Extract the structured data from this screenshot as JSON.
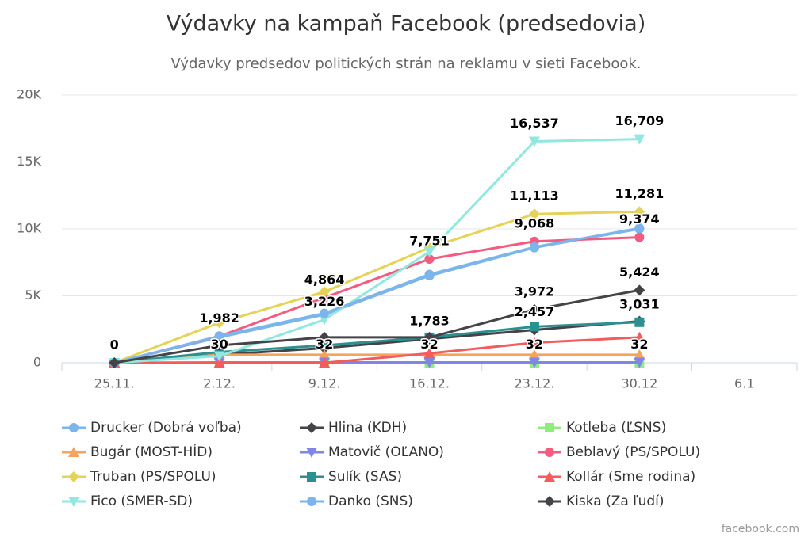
{
  "chart_data": {
    "type": "line",
    "title": "Výdavky na kampaň Facebook (predsedovia)",
    "subtitle": "Výdavky predsedov politických strán na reklamu v sieti Facebook.",
    "credits": "facebook.com",
    "categories": [
      "25.11.",
      "2.12.",
      "9.12.",
      "16.12.",
      "23.12.",
      "30.12",
      "6.1"
    ],
    "ylim": [
      0,
      20000
    ],
    "yticks": [
      {
        "value": 0,
        "label": "0"
      },
      {
        "value": 5000,
        "label": "5K"
      },
      {
        "value": 10000,
        "label": "10K"
      },
      {
        "value": 15000,
        "label": "15K"
      },
      {
        "value": 20000,
        "label": "20K"
      }
    ],
    "grid": true,
    "legend": "bottom",
    "series": [
      {
        "name": "Drucker (Dobrá voľba)",
        "color": "#7cb5ec",
        "marker": "circle",
        "values": [
          0,
          1900,
          3600,
          6500,
          8600,
          10000,
          null
        ]
      },
      {
        "name": "Hlina (KDH)",
        "color": "#434348",
        "marker": "diamond",
        "values": [
          0,
          600,
          1100,
          1783,
          2457,
          3100,
          null
        ],
        "value_labels": [
          null,
          null,
          null,
          "1,783",
          "2,457",
          null,
          null
        ]
      },
      {
        "name": "Kotleba (ĽSNS)",
        "color": "#90ed7d",
        "marker": "square",
        "values": [
          0,
          0,
          0,
          0,
          0,
          0,
          null
        ]
      },
      {
        "name": "Bugár (MOST-HÍD)",
        "color": "#f7a35c",
        "marker": "triangle",
        "values": [
          0,
          600,
          600,
          600,
          600,
          600,
          null
        ]
      },
      {
        "name": "Matovič (OĽANO)",
        "color": "#8085e9",
        "marker": "triangle-down",
        "values": [
          0,
          30,
          32,
          32,
          32,
          32,
          null
        ],
        "value_labels": [
          "0",
          "30",
          "32",
          "32",
          "32",
          "32",
          null
        ]
      },
      {
        "name": "Beblavý (PS/SPOLU)",
        "color": "#f15c80",
        "marker": "circle",
        "values": [
          0,
          1982,
          4864,
          7751,
          9068,
          9374,
          null
        ],
        "value_labels": [
          null,
          "1,982",
          "4,864",
          "7,751",
          "9,068",
          "9,374",
          null
        ]
      },
      {
        "name": "Truban (PS/SPOLU)",
        "color": "#e4d354",
        "marker": "diamond",
        "values": [
          0,
          3000,
          5300,
          8600,
          11113,
          11281,
          null
        ],
        "value_labels": [
          null,
          null,
          null,
          null,
          "11,113",
          "11,281",
          null
        ]
      },
      {
        "name": "Sulík (SAS)",
        "color": "#2b908f",
        "marker": "square",
        "values": [
          0,
          800,
          1300,
          1900,
          2700,
          3031,
          null
        ],
        "value_labels": [
          null,
          null,
          null,
          null,
          null,
          "3,031",
          null
        ]
      },
      {
        "name": "Kollár (Sme rodina)",
        "color": "#f45b5b",
        "marker": "triangle",
        "values": [
          0,
          0,
          0,
          700,
          1500,
          1900,
          null
        ]
      },
      {
        "name": "Fico (SMER-SD)",
        "color": "#91e8e1",
        "marker": "triangle-down",
        "values": [
          0,
          500,
          3226,
          8300,
          16537,
          16709,
          null
        ],
        "value_labels": [
          null,
          null,
          "3,226",
          null,
          "16,537",
          "16,709",
          null
        ]
      },
      {
        "name": "Danko (SNS)",
        "color": "#7cb5ec",
        "marker": "circle",
        "values": [
          0,
          2000,
          3700,
          6600,
          8650,
          10050,
          null
        ]
      },
      {
        "name": "Kiska (Za ľudí)",
        "color": "#434348",
        "marker": "diamond",
        "values": [
          0,
          1300,
          1900,
          1900,
          3972,
          5424,
          null
        ],
        "value_labels": [
          null,
          null,
          null,
          null,
          "3,972",
          "5,424",
          null
        ]
      }
    ]
  }
}
